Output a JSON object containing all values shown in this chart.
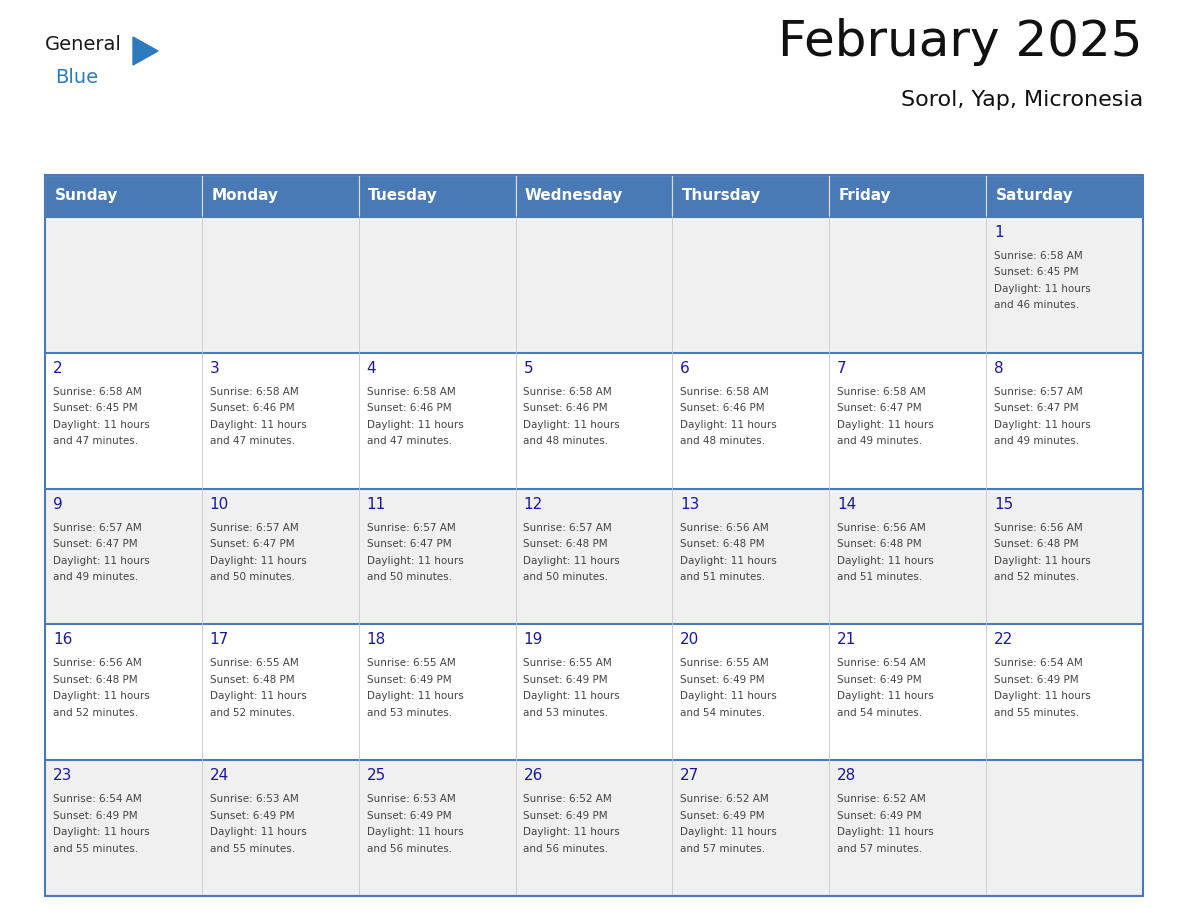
{
  "title": "February 2025",
  "subtitle": "Sorol, Yap, Micronesia",
  "days_of_week": [
    "Sunday",
    "Monday",
    "Tuesday",
    "Wednesday",
    "Thursday",
    "Friday",
    "Saturday"
  ],
  "header_bg": "#4a7ab5",
  "header_text": "#ffffff",
  "row_bg_odd": "#f0f0f0",
  "row_bg_even": "#ffffff",
  "border_color": "#4a7ab5",
  "cell_border_color": "#cccccc",
  "text_color": "#444444",
  "day_num_color": "#1a1a99",
  "calendar_data": [
    [
      null,
      null,
      null,
      null,
      null,
      null,
      {
        "day": 1,
        "sunrise": "6:58 AM",
        "sunset": "6:45 PM",
        "daylight": "11 hours and 46 minutes."
      }
    ],
    [
      {
        "day": 2,
        "sunrise": "6:58 AM",
        "sunset": "6:45 PM",
        "daylight": "11 hours and 47 minutes."
      },
      {
        "day": 3,
        "sunrise": "6:58 AM",
        "sunset": "6:46 PM",
        "daylight": "11 hours and 47 minutes."
      },
      {
        "day": 4,
        "sunrise": "6:58 AM",
        "sunset": "6:46 PM",
        "daylight": "11 hours and 47 minutes."
      },
      {
        "day": 5,
        "sunrise": "6:58 AM",
        "sunset": "6:46 PM",
        "daylight": "11 hours and 48 minutes."
      },
      {
        "day": 6,
        "sunrise": "6:58 AM",
        "sunset": "6:46 PM",
        "daylight": "11 hours and 48 minutes."
      },
      {
        "day": 7,
        "sunrise": "6:58 AM",
        "sunset": "6:47 PM",
        "daylight": "11 hours and 49 minutes."
      },
      {
        "day": 8,
        "sunrise": "6:57 AM",
        "sunset": "6:47 PM",
        "daylight": "11 hours and 49 minutes."
      }
    ],
    [
      {
        "day": 9,
        "sunrise": "6:57 AM",
        "sunset": "6:47 PM",
        "daylight": "11 hours and 49 minutes."
      },
      {
        "day": 10,
        "sunrise": "6:57 AM",
        "sunset": "6:47 PM",
        "daylight": "11 hours and 50 minutes."
      },
      {
        "day": 11,
        "sunrise": "6:57 AM",
        "sunset": "6:47 PM",
        "daylight": "11 hours and 50 minutes."
      },
      {
        "day": 12,
        "sunrise": "6:57 AM",
        "sunset": "6:48 PM",
        "daylight": "11 hours and 50 minutes."
      },
      {
        "day": 13,
        "sunrise": "6:56 AM",
        "sunset": "6:48 PM",
        "daylight": "11 hours and 51 minutes."
      },
      {
        "day": 14,
        "sunrise": "6:56 AM",
        "sunset": "6:48 PM",
        "daylight": "11 hours and 51 minutes."
      },
      {
        "day": 15,
        "sunrise": "6:56 AM",
        "sunset": "6:48 PM",
        "daylight": "11 hours and 52 minutes."
      }
    ],
    [
      {
        "day": 16,
        "sunrise": "6:56 AM",
        "sunset": "6:48 PM",
        "daylight": "11 hours and 52 minutes."
      },
      {
        "day": 17,
        "sunrise": "6:55 AM",
        "sunset": "6:48 PM",
        "daylight": "11 hours and 52 minutes."
      },
      {
        "day": 18,
        "sunrise": "6:55 AM",
        "sunset": "6:49 PM",
        "daylight": "11 hours and 53 minutes."
      },
      {
        "day": 19,
        "sunrise": "6:55 AM",
        "sunset": "6:49 PM",
        "daylight": "11 hours and 53 minutes."
      },
      {
        "day": 20,
        "sunrise": "6:55 AM",
        "sunset": "6:49 PM",
        "daylight": "11 hours and 54 minutes."
      },
      {
        "day": 21,
        "sunrise": "6:54 AM",
        "sunset": "6:49 PM",
        "daylight": "11 hours and 54 minutes."
      },
      {
        "day": 22,
        "sunrise": "6:54 AM",
        "sunset": "6:49 PM",
        "daylight": "11 hours and 55 minutes."
      }
    ],
    [
      {
        "day": 23,
        "sunrise": "6:54 AM",
        "sunset": "6:49 PM",
        "daylight": "11 hours and 55 minutes."
      },
      {
        "day": 24,
        "sunrise": "6:53 AM",
        "sunset": "6:49 PM",
        "daylight": "11 hours and 55 minutes."
      },
      {
        "day": 25,
        "sunrise": "6:53 AM",
        "sunset": "6:49 PM",
        "daylight": "11 hours and 56 minutes."
      },
      {
        "day": 26,
        "sunrise": "6:52 AM",
        "sunset": "6:49 PM",
        "daylight": "11 hours and 56 minutes."
      },
      {
        "day": 27,
        "sunrise": "6:52 AM",
        "sunset": "6:49 PM",
        "daylight": "11 hours and 57 minutes."
      },
      {
        "day": 28,
        "sunrise": "6:52 AM",
        "sunset": "6:49 PM",
        "daylight": "11 hours and 57 minutes."
      },
      null
    ]
  ],
  "logo_text1": "General",
  "logo_text2": "Blue",
  "logo_color1": "#1a1a1a",
  "logo_color2": "#2e7abf",
  "logo_triangle_color": "#2e7abf",
  "figsize": [
    11.88,
    9.18
  ],
  "dpi": 100
}
